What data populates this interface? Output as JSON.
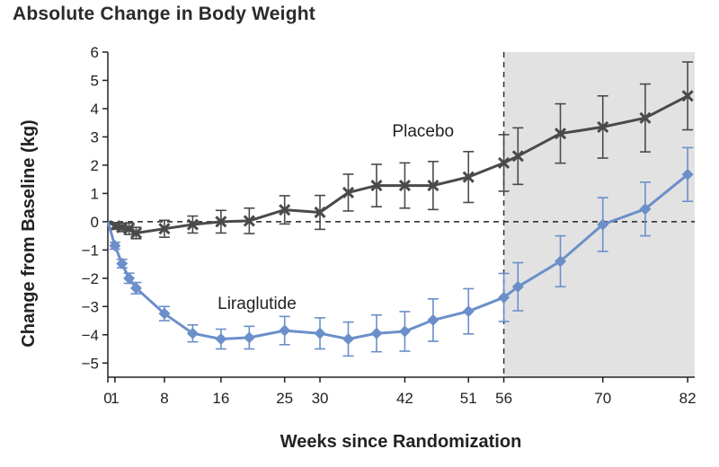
{
  "chart_data": {
    "type": "line",
    "title": "Absolute Change in Body Weight",
    "xlabel": "Weeks since Randomization",
    "ylabel": "Change from Baseline (kg)",
    "ylim": [
      -5.5,
      6
    ],
    "xlim": [
      0,
      83
    ],
    "x_ticks": [
      0,
      1,
      8,
      16,
      25,
      30,
      42,
      51,
      56,
      70,
      82
    ],
    "y_ticks": [
      6,
      5,
      4,
      3,
      2,
      1,
      0,
      -1,
      -2,
      -3,
      -4,
      -5
    ],
    "y_tick_labels": [
      "6",
      "5",
      "4",
      "3",
      "2",
      "1",
      "0",
      "−1",
      "−2",
      "−3",
      "−4",
      "−5"
    ],
    "reference_line": 0,
    "shaded_region_start": 56,
    "shaded_region_end": 83,
    "series": [
      {
        "name": "Placebo",
        "color": "#4a4a4a",
        "marker": "x",
        "label_at": [
          42,
          3.2
        ],
        "points": [
          {
            "x": 0,
            "y": 0,
            "err": 0
          },
          {
            "x": 1,
            "y": -0.15,
            "err": 0.12
          },
          {
            "x": 2,
            "y": -0.2,
            "err": 0.15
          },
          {
            "x": 3,
            "y": -0.25,
            "err": 0.2
          },
          {
            "x": 4,
            "y": -0.4,
            "err": 0.2
          },
          {
            "x": 8,
            "y": -0.25,
            "err": 0.3
          },
          {
            "x": 12,
            "y": -0.1,
            "err": 0.3
          },
          {
            "x": 16,
            "y": 0,
            "err": 0.4
          },
          {
            "x": 20,
            "y": 0.03,
            "err": 0.45
          },
          {
            "x": 25,
            "y": 0.42,
            "err": 0.5
          },
          {
            "x": 30,
            "y": 0.33,
            "err": 0.6
          },
          {
            "x": 34,
            "y": 1.03,
            "err": 0.65
          },
          {
            "x": 38,
            "y": 1.28,
            "err": 0.75
          },
          {
            "x": 42,
            "y": 1.28,
            "err": 0.8
          },
          {
            "x": 46,
            "y": 1.28,
            "err": 0.85
          },
          {
            "x": 51,
            "y": 1.58,
            "err": 0.9
          },
          {
            "x": 56,
            "y": 2.08,
            "err": 1.0
          },
          {
            "x": 58,
            "y": 2.32,
            "err": 1.0
          },
          {
            "x": 64,
            "y": 3.12,
            "err": 1.05
          },
          {
            "x": 70,
            "y": 3.35,
            "err": 1.1
          },
          {
            "x": 76,
            "y": 3.67,
            "err": 1.2
          },
          {
            "x": 82,
            "y": 4.45,
            "err": 1.2
          }
        ]
      },
      {
        "name": "Liraglutide",
        "color": "#6b8fc9",
        "marker": "diamond",
        "label_at": [
          14,
          -2.9
        ],
        "points": [
          {
            "x": 0,
            "y": 0,
            "err": 0
          },
          {
            "x": 1,
            "y": -0.85,
            "err": 0.12
          },
          {
            "x": 2,
            "y": -1.48,
            "err": 0.15
          },
          {
            "x": 3,
            "y": -2.0,
            "err": 0.18
          },
          {
            "x": 4,
            "y": -2.35,
            "err": 0.2
          },
          {
            "x": 8,
            "y": -3.25,
            "err": 0.25
          },
          {
            "x": 12,
            "y": -3.95,
            "err": 0.3
          },
          {
            "x": 16,
            "y": -4.15,
            "err": 0.35
          },
          {
            "x": 20,
            "y": -4.1,
            "err": 0.4
          },
          {
            "x": 25,
            "y": -3.85,
            "err": 0.5
          },
          {
            "x": 30,
            "y": -3.95,
            "err": 0.55
          },
          {
            "x": 34,
            "y": -4.15,
            "err": 0.6
          },
          {
            "x": 38,
            "y": -3.95,
            "err": 0.65
          },
          {
            "x": 42,
            "y": -3.88,
            "err": 0.7
          },
          {
            "x": 46,
            "y": -3.48,
            "err": 0.75
          },
          {
            "x": 51,
            "y": -3.17,
            "err": 0.8
          },
          {
            "x": 56,
            "y": -2.68,
            "err": 0.85
          },
          {
            "x": 58,
            "y": -2.3,
            "err": 0.85
          },
          {
            "x": 64,
            "y": -1.4,
            "err": 0.9
          },
          {
            "x": 70,
            "y": -0.1,
            "err": 0.95
          },
          {
            "x": 76,
            "y": 0.45,
            "err": 0.95
          },
          {
            "x": 82,
            "y": 1.67,
            "err": 0.95
          }
        ]
      }
    ]
  }
}
